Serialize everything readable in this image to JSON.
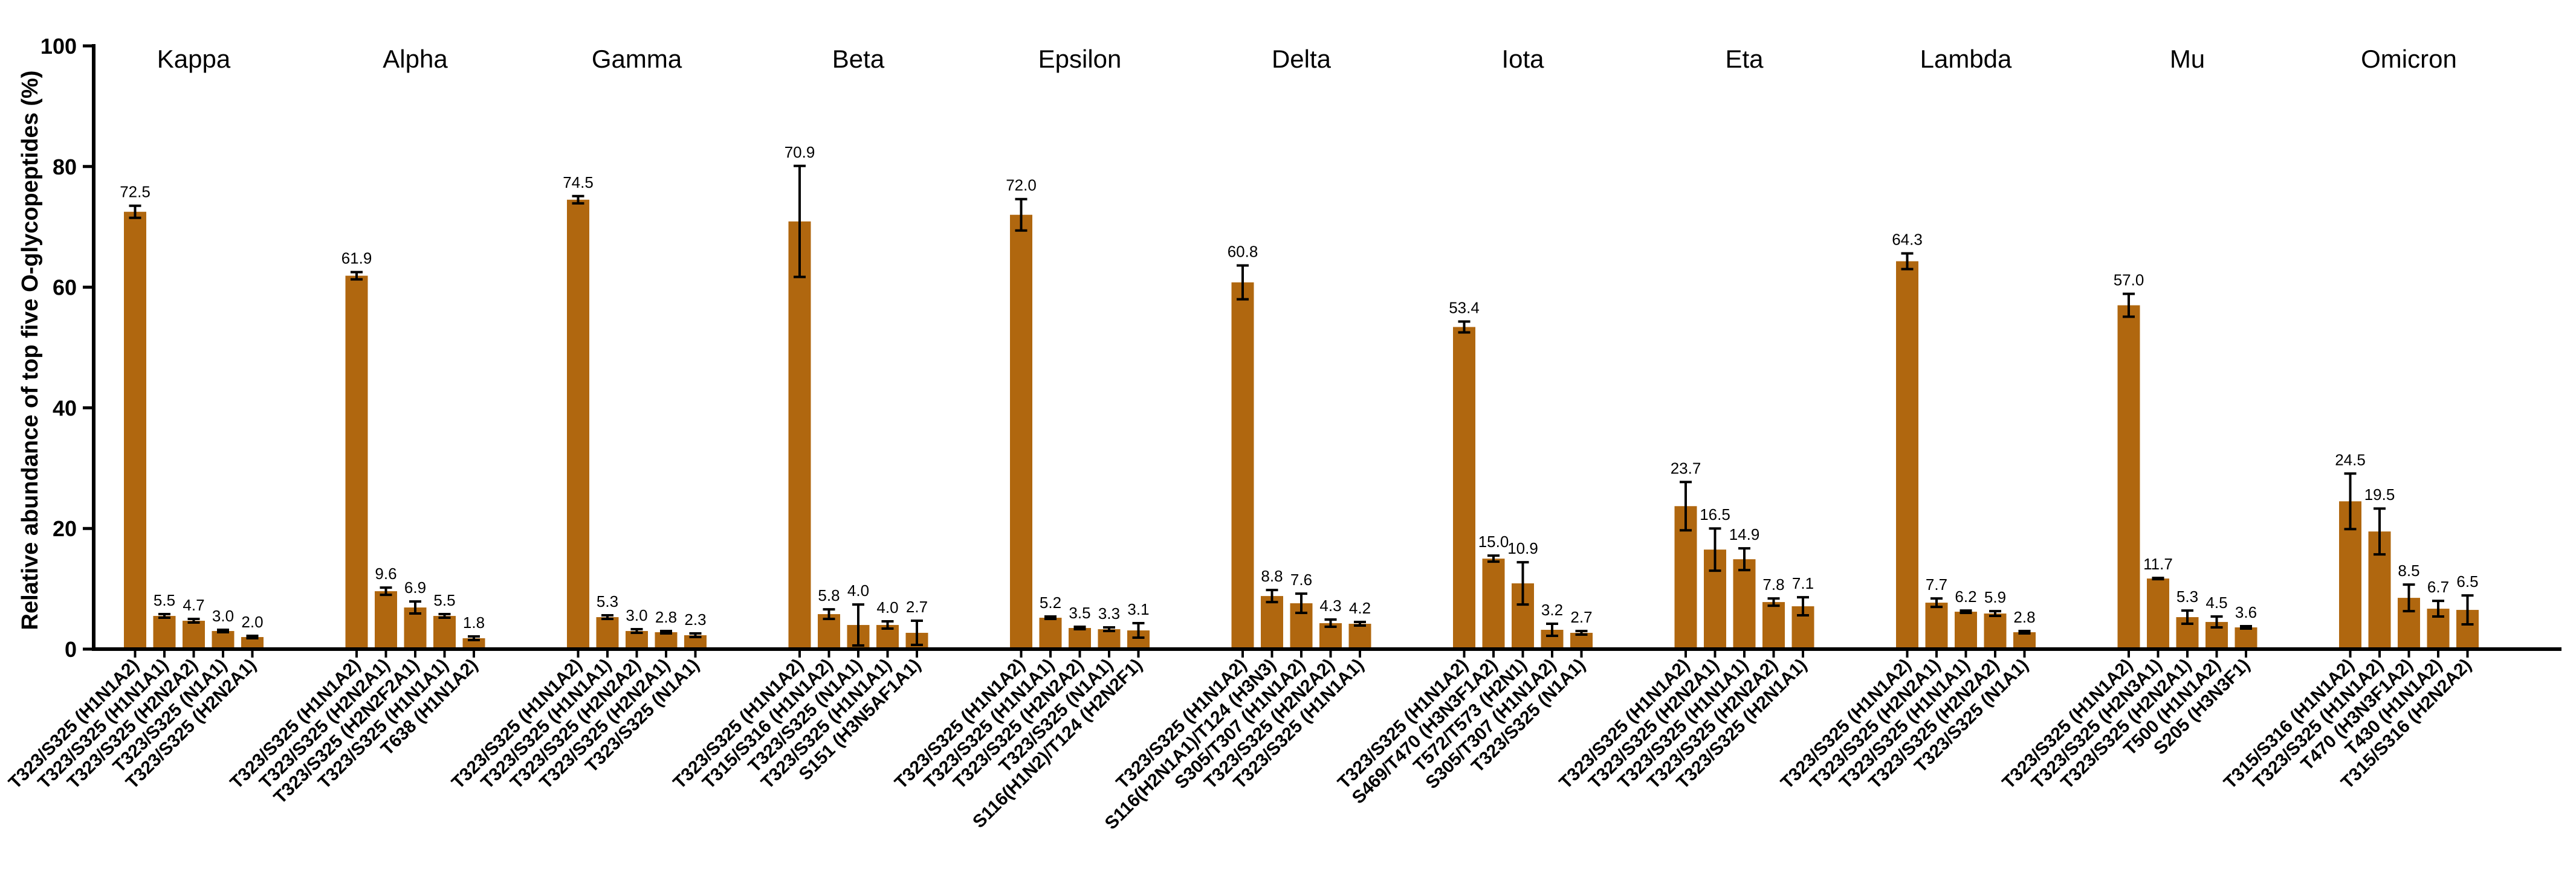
{
  "chart_data": {
    "type": "bar",
    "title": "",
    "xlabel": "",
    "ylabel": "Relative abundance of top five O-glycopeptides  (%)",
    "ylim": [
      0,
      100
    ],
    "yticks": [
      0,
      20,
      40,
      60,
      80,
      100
    ],
    "grid": false,
    "bar_color": "#B0670F",
    "error_bar_color": "#000000",
    "groups": [
      {
        "name": "Kappa",
        "bars": [
          {
            "label": "T323/S325 (H1N1A2)",
            "value": 72.5,
            "error": 1.0,
            "value_label": "72.5"
          },
          {
            "label": "T323/S325 (H1N1A1)",
            "value": 5.5,
            "error": 0.3,
            "value_label": "5.5"
          },
          {
            "label": "T323/S325 (H2N2A2)",
            "value": 4.7,
            "error": 0.3,
            "value_label": "4.7"
          },
          {
            "label": "T323/S325 (N1A1)",
            "value": 3.0,
            "error": 0.2,
            "value_label": "3.0"
          },
          {
            "label": "T323/S325 (H2N2A1)",
            "value": 2.0,
            "error": 0.2,
            "value_label": "2.0"
          }
        ]
      },
      {
        "name": "Alpha",
        "bars": [
          {
            "label": "T323/S325 (H1N1A2)",
            "value": 61.9,
            "error": 0.6,
            "value_label": "61.9"
          },
          {
            "label": "T323/S325 (H2N2A1)",
            "value": 9.6,
            "error": 0.6,
            "value_label": "9.6"
          },
          {
            "label": "T323/S325 (H2N2F2A1)",
            "value": 6.9,
            "error": 1.0,
            "value_label": "6.9"
          },
          {
            "label": "T323/S325 (H1N1A1)",
            "value": 5.5,
            "error": 0.3,
            "value_label": "5.5"
          },
          {
            "label": "T638 (H1N1A2)",
            "value": 1.8,
            "error": 0.3,
            "value_label": "1.8"
          }
        ]
      },
      {
        "name": "Gamma",
        "bars": [
          {
            "label": "T323/S325 (H1N1A2)",
            "value": 74.5,
            "error": 0.6,
            "value_label": "74.5"
          },
          {
            "label": "T323/S325 (H1N1A1)",
            "value": 5.3,
            "error": 0.3,
            "value_label": "5.3"
          },
          {
            "label": "T323/S325 (H2N2A2)",
            "value": 3.0,
            "error": 0.3,
            "value_label": "3.0"
          },
          {
            "label": "T323/S325 (H2N2A1)",
            "value": 2.8,
            "error": 0.2,
            "value_label": "2.8"
          },
          {
            "label": "T323/S325 (N1A1)",
            "value": 2.3,
            "error": 0.3,
            "value_label": "2.3"
          }
        ]
      },
      {
        "name": "Beta",
        "bars": [
          {
            "label": "T323/S325 (H1N1A2)",
            "value": 70.9,
            "error": 9.2,
            "value_label": "70.9"
          },
          {
            "label": "T315/S316 (H1N1A2)",
            "value": 5.8,
            "error": 0.8,
            "value_label": "5.8"
          },
          {
            "label": "T323/S325 (N1A1)",
            "value": 4.0,
            "error": 3.4,
            "value_label": "4.0"
          },
          {
            "label": "T323/S325 (H1N1A1)",
            "value": 4.0,
            "error": 0.6,
            "value_label": "4.0"
          },
          {
            "label": "S151 (H3N5AF1A1)",
            "value": 2.7,
            "error": 2.0,
            "value_label": "2.7"
          }
        ]
      },
      {
        "name": "Epsilon",
        "bars": [
          {
            "label": "T323/S325 (H1N1A2)",
            "value": 72.0,
            "error": 2.6,
            "value_label": "72.0"
          },
          {
            "label": "T323/S325 (H1N1A1)",
            "value": 5.2,
            "error": 0.2,
            "value_label": "5.2"
          },
          {
            "label": "T323/S325 (H2N2A2)",
            "value": 3.5,
            "error": 0.2,
            "value_label": "3.5"
          },
          {
            "label": "T323/S325 (N1A1)",
            "value": 3.3,
            "error": 0.3,
            "value_label": "3.3"
          },
          {
            "label": "S116(H1N2)/T124 (H2N2F1)",
            "value": 3.1,
            "error": 1.2,
            "value_label": "3.1"
          }
        ]
      },
      {
        "name": "Delta",
        "bars": [
          {
            "label": "T323/S325 (H1N1A2)",
            "value": 60.8,
            "error": 2.8,
            "value_label": "60.8"
          },
          {
            "label": "S116(H2N1A1)/T124 (H3N3)",
            "value": 8.8,
            "error": 1.0,
            "value_label": "8.8"
          },
          {
            "label": "S305/T307 (H1N1A2)",
            "value": 7.6,
            "error": 1.6,
            "value_label": "7.6"
          },
          {
            "label": "T323/S325 (H2N2A2)",
            "value": 4.3,
            "error": 0.6,
            "value_label": "4.3"
          },
          {
            "label": "T323/S325 (H1N1A1)",
            "value": 4.2,
            "error": 0.3,
            "value_label": "4.2"
          }
        ]
      },
      {
        "name": "Iota",
        "bars": [
          {
            "label": "T323/S325 (H1N1A2)",
            "value": 53.4,
            "error": 0.9,
            "value_label": "53.4"
          },
          {
            "label": "S469/T470 (H3N3F1A2)",
            "value": 15.0,
            "error": 0.5,
            "value_label": "15.0"
          },
          {
            "label": "T572/T573 (H2N1)",
            "value": 10.9,
            "error": 3.5,
            "value_label": "10.9"
          },
          {
            "label": "S305/T307 (H1N1A2)",
            "value": 3.2,
            "error": 1.0,
            "value_label": "3.2"
          },
          {
            "label": "T323/S325 (N1A1)",
            "value": 2.7,
            "error": 0.3,
            "value_label": "2.7"
          }
        ]
      },
      {
        "name": "Eta",
        "bars": [
          {
            "label": "T323/S325 (H1N1A2)",
            "value": 23.7,
            "error": 4.0,
            "value_label": "23.7"
          },
          {
            "label": "T323/S325 (H2N2A1)",
            "value": 16.5,
            "error": 3.5,
            "value_label": "16.5"
          },
          {
            "label": "T323/S325 (H1N1A1)",
            "value": 14.9,
            "error": 1.8,
            "value_label": "14.9"
          },
          {
            "label": "T323/S325 (H2N2A2)",
            "value": 7.8,
            "error": 0.6,
            "value_label": "7.8"
          },
          {
            "label": "T323/S325 (H2N1A1)",
            "value": 7.1,
            "error": 1.5,
            "value_label": "7.1"
          }
        ]
      },
      {
        "name": "Lambda",
        "bars": [
          {
            "label": "T323/S325 (H1N1A2)",
            "value": 64.3,
            "error": 1.3,
            "value_label": "64.3"
          },
          {
            "label": "T323/S325 (H2N2A1)",
            "value": 7.7,
            "error": 0.7,
            "value_label": "7.7"
          },
          {
            "label": "T323/S325 (H1N1A1)",
            "value": 6.2,
            "error": 0.2,
            "value_label": "6.2"
          },
          {
            "label": "T323/S325 (H2N2A2)",
            "value": 5.9,
            "error": 0.4,
            "value_label": "5.9"
          },
          {
            "label": "T323/S325 (N1A1)",
            "value": 2.8,
            "error": 0.2,
            "value_label": "2.8"
          }
        ]
      },
      {
        "name": "Mu",
        "bars": [
          {
            "label": "T323/S325 (H1N1A2)",
            "value": 57.0,
            "error": 1.9,
            "value_label": "57.0"
          },
          {
            "label": "T323/S325 (H2N3A1)",
            "value": 11.7,
            "error": 0.1,
            "value_label": "11.7"
          },
          {
            "label": "T323/S325 (H2N2A1)",
            "value": 5.3,
            "error": 1.1,
            "value_label": "5.3"
          },
          {
            "label": "T500 (H1N1A2)",
            "value": 4.5,
            "error": 0.9,
            "value_label": "4.5"
          },
          {
            "label": "S205 (H3N3F1)",
            "value": 3.6,
            "error": 0.2,
            "value_label": "3.6"
          }
        ]
      },
      {
        "name": "Omicron",
        "bars": [
          {
            "label": "T315/S316 (H1N1A2)",
            "value": 24.5,
            "error": 4.6,
            "value_label": "24.5"
          },
          {
            "label": "T323/S325 (H1N1A2)",
            "value": 19.5,
            "error": 3.8,
            "value_label": "19.5"
          },
          {
            "label": "T470 (H3N3F1A2)",
            "value": 8.5,
            "error": 2.2,
            "value_label": "8.5"
          },
          {
            "label": "T430 (H1N1A2)",
            "value": 6.7,
            "error": 1.3,
            "value_label": "6.7"
          },
          {
            "label": "T315/S316 (H2N2A2)",
            "value": 6.5,
            "error": 2.4,
            "value_label": "6.5"
          }
        ]
      }
    ]
  }
}
